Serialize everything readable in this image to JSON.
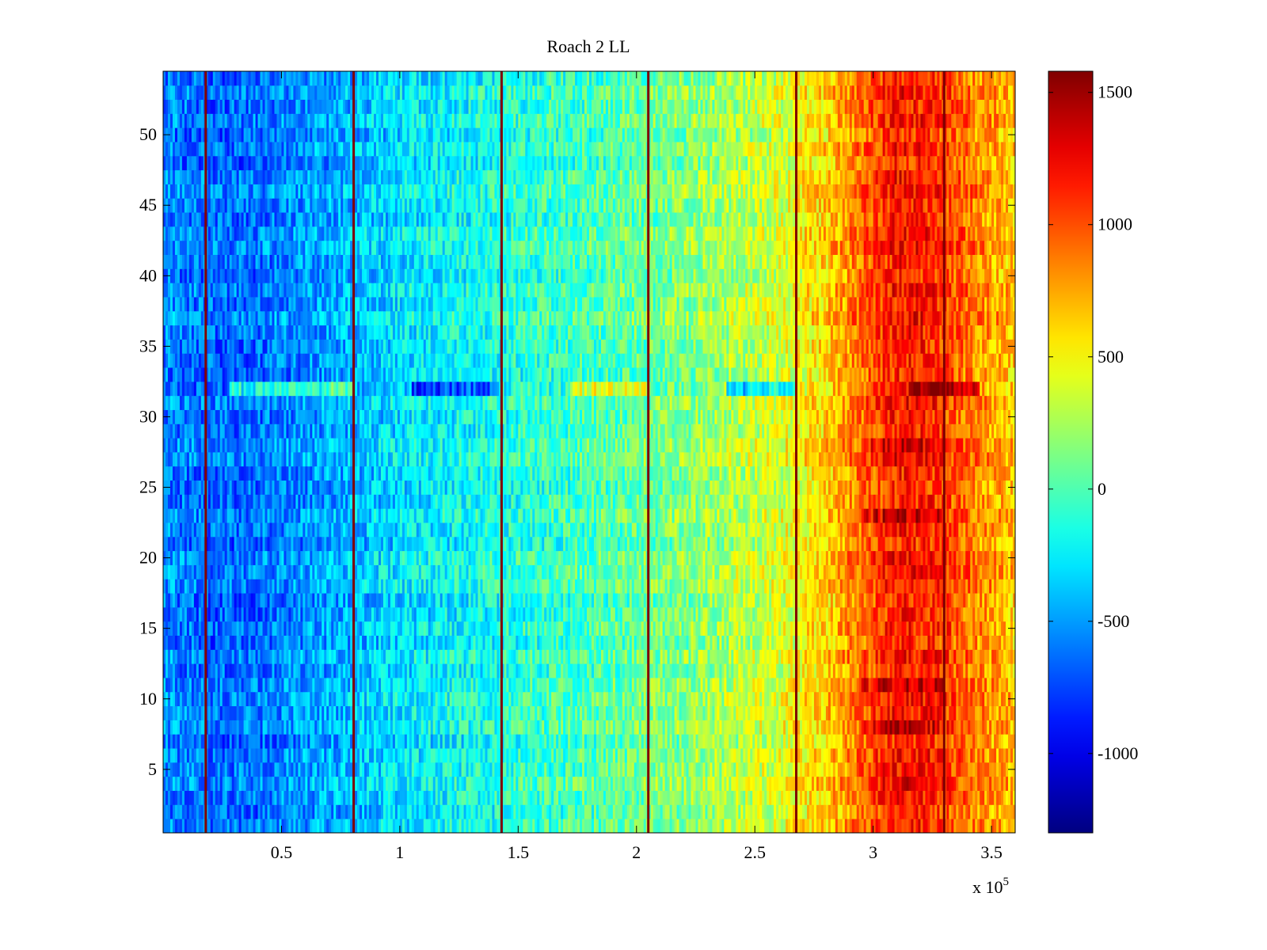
{
  "chart_data": {
    "type": "heatmap",
    "title": "Roach 2 LL",
    "xlabel": "",
    "ylabel": "",
    "x_exponent_label": "x 10",
    "x_exponent_power": "5",
    "xlim": [
      0,
      3.6
    ],
    "ylim": [
      0.5,
      54.5
    ],
    "x_ticks": [
      0.5,
      1,
      1.5,
      2,
      2.5,
      3,
      3.5
    ],
    "x_tick_labels": [
      "0.5",
      "1",
      "1.5",
      "2",
      "2.5",
      "3",
      "3.5"
    ],
    "y_ticks": [
      5,
      10,
      15,
      20,
      25,
      30,
      35,
      40,
      45,
      50
    ],
    "y_tick_labels": [
      "5",
      "10",
      "15",
      "20",
      "25",
      "30",
      "35",
      "40",
      "45",
      "50"
    ],
    "rows": 54,
    "columns": 360,
    "colormap": "jet",
    "clim": [
      -1300,
      1580
    ],
    "colorbar_ticks": [
      -1000,
      -500,
      0,
      500,
      1000,
      1500
    ],
    "colorbar_tick_labels": [
      "-1000",
      "-500",
      "0",
      "500",
      "1000",
      "1500"
    ],
    "vertical_lines_x": [
      0.18,
      0.805,
      1.43,
      2.05,
      2.675,
      3.3
    ],
    "vertical_line_value": 1580,
    "mean_profile": [
      {
        "x": 0.0,
        "value": -550
      },
      {
        "x": 0.2,
        "value": -640
      },
      {
        "x": 0.4,
        "value": -620
      },
      {
        "x": 0.6,
        "value": -520
      },
      {
        "x": 0.8,
        "value": -420
      },
      {
        "x": 1.0,
        "value": -300
      },
      {
        "x": 1.2,
        "value": -230
      },
      {
        "x": 1.4,
        "value": -160
      },
      {
        "x": 1.6,
        "value": -80
      },
      {
        "x": 1.8,
        "value": -20
      },
      {
        "x": 2.0,
        "value": 60
      },
      {
        "x": 2.2,
        "value": 150
      },
      {
        "x": 2.4,
        "value": 260
      },
      {
        "x": 2.6,
        "value": 380
      },
      {
        "x": 2.8,
        "value": 620
      },
      {
        "x": 2.95,
        "value": 920
      },
      {
        "x": 3.1,
        "value": 1180
      },
      {
        "x": 3.25,
        "value": 1120
      },
      {
        "x": 3.4,
        "value": 900
      },
      {
        "x": 3.6,
        "value": 650
      }
    ],
    "row_anomalies": [
      {
        "row": 32,
        "x_from": 0.28,
        "x_to": 0.8,
        "offset": 500
      },
      {
        "row": 32,
        "x_from": 1.05,
        "x_to": 1.42,
        "offset": -450
      },
      {
        "row": 32,
        "x_from": 1.72,
        "x_to": 2.05,
        "offset": 480
      },
      {
        "row": 32,
        "x_from": 2.38,
        "x_to": 2.67,
        "offset": -550
      },
      {
        "row": 32,
        "x_from": 3.15,
        "x_to": 3.45,
        "offset": 500
      },
      {
        "row": 23,
        "x_from": 2.95,
        "x_to": 3.3,
        "offset": 200
      },
      {
        "row": 28,
        "x_from": 2.95,
        "x_to": 3.3,
        "offset": 180
      },
      {
        "row": 11,
        "x_from": 2.95,
        "x_to": 3.3,
        "offset": 200
      },
      {
        "row": 8,
        "x_from": 2.95,
        "x_to": 3.3,
        "offset": 150
      }
    ]
  }
}
